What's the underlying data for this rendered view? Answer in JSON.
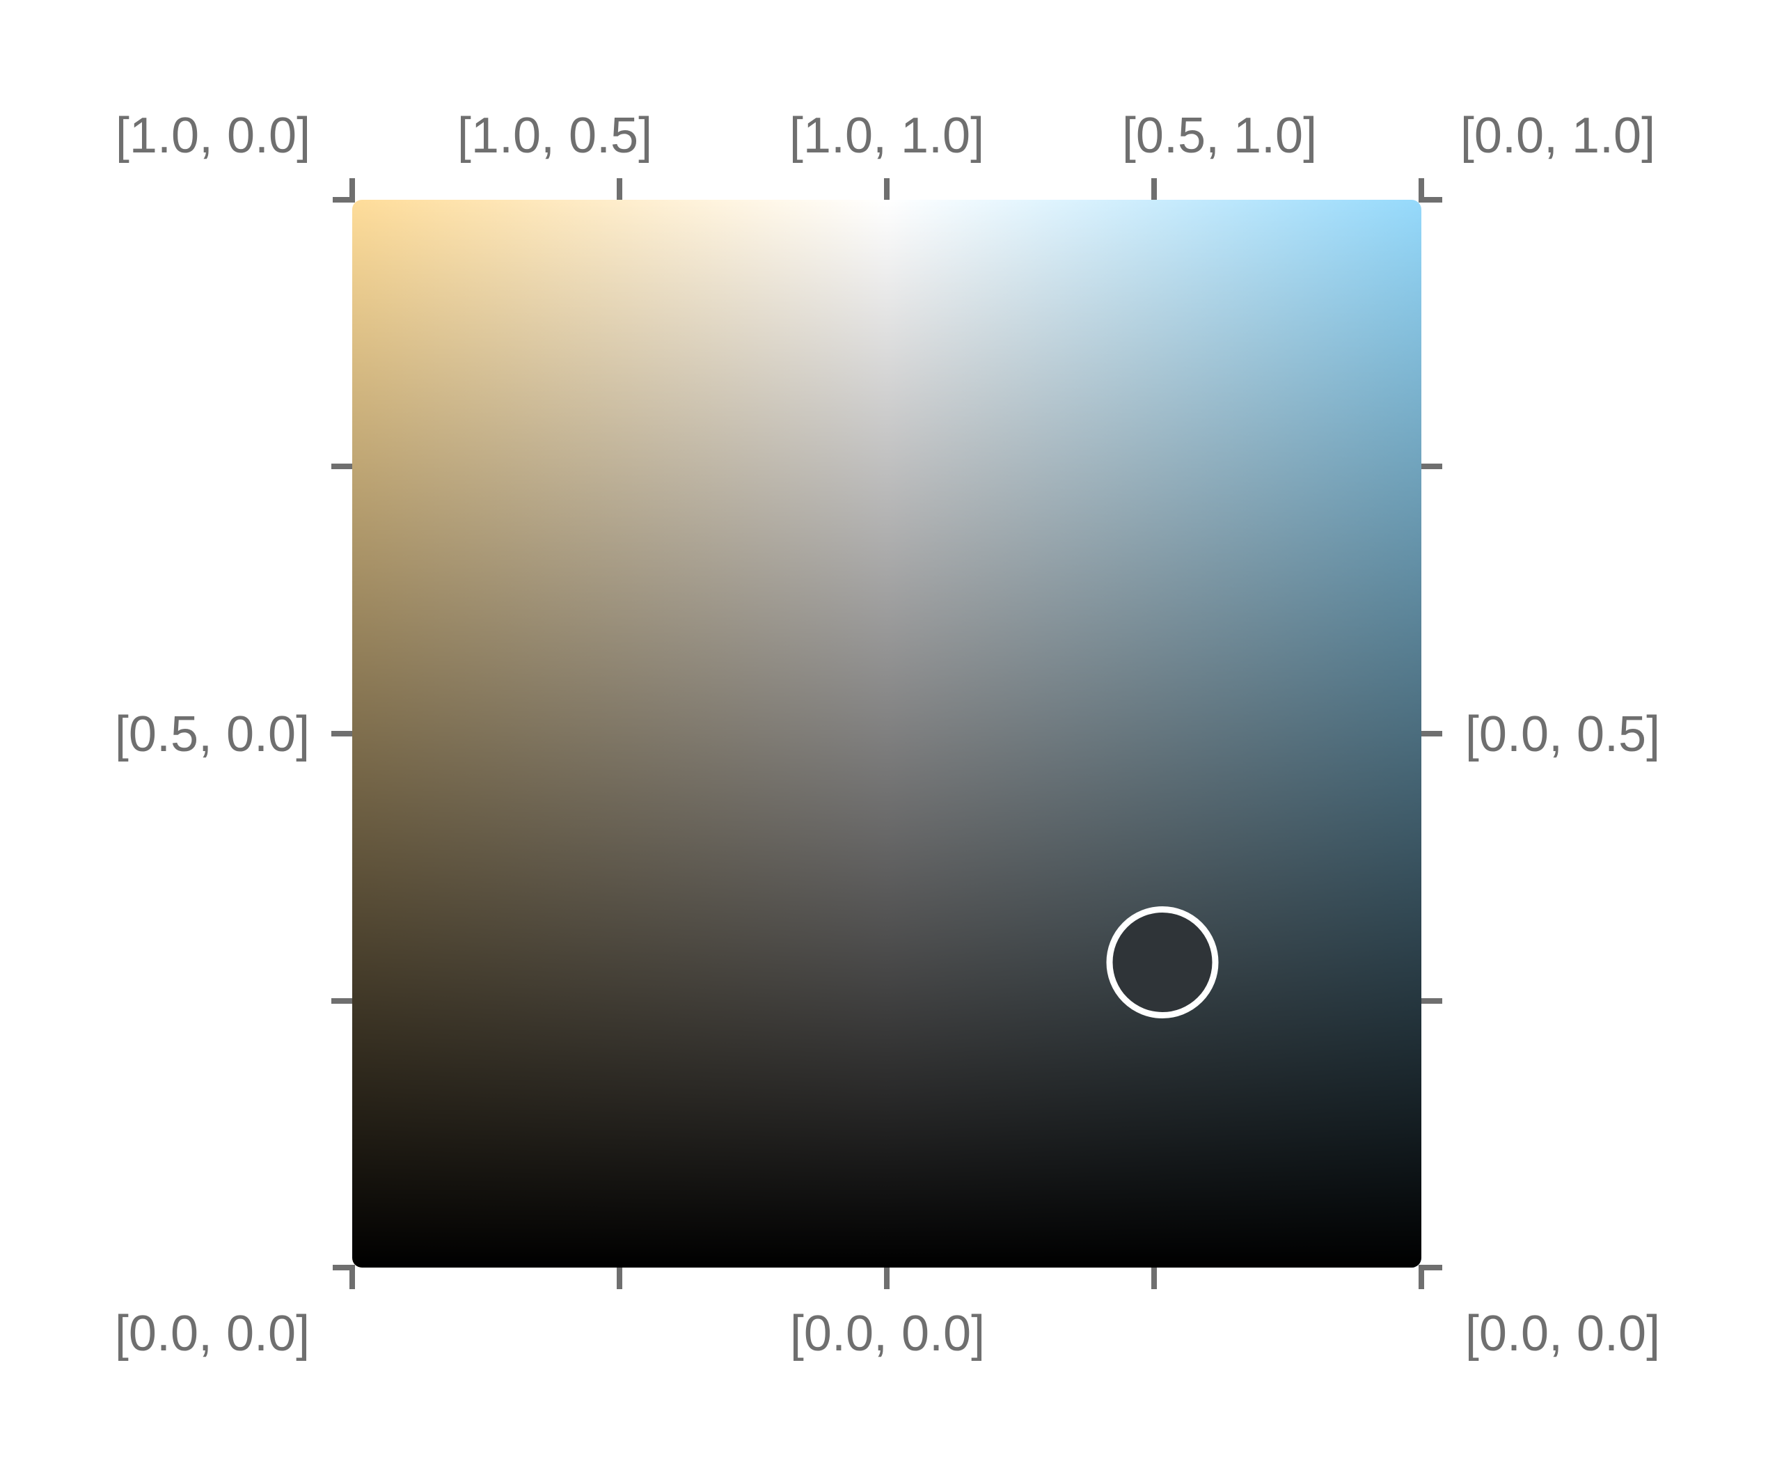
{
  "picker": {
    "colors": {
      "top_left": "#fedc99",
      "top_mid": "#ffffff",
      "top_right": "#95d9fb",
      "bottom": "#000000",
      "tick": "#6f6f6f",
      "handle": "#ffffff",
      "handle_fill": "#2f3438"
    },
    "labels": {
      "top": [
        "[1.0, 0.0]",
        "[1.0, 0.5]",
        "[1.0, 1.0]",
        "[0.5, 1.0]",
        "[0.0, 1.0]"
      ],
      "left_mid": "[0.5, 0.0]",
      "right_mid": "[0.0, 0.5]",
      "bottom_left": "[0.0, 0.0]",
      "bottom_mid": "[0.0, 0.0]",
      "bottom_right": "[0.0, 0.0]"
    },
    "handle_value": [
      0.25,
      0.25
    ]
  }
}
